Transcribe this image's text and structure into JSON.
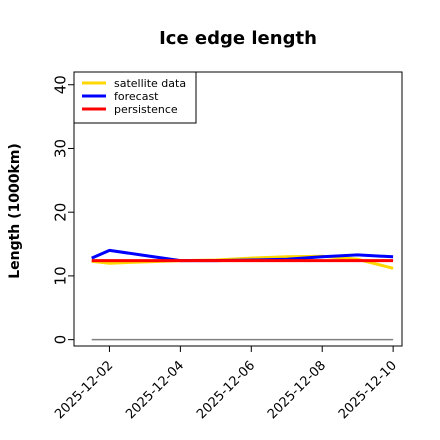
{
  "chart_data": {
    "type": "line",
    "title": "Ice edge length",
    "ylabel": "Length (1000km)",
    "xlabel": "",
    "ylim": [
      -1,
      42
    ],
    "yticks": [
      0,
      10,
      20,
      30,
      40
    ],
    "xlim": [
      "2025-12-01T00:00",
      "2025-12-10T06:00"
    ],
    "xticks": [
      "2025-12-02",
      "2025-12-04",
      "2025-12-06",
      "2025-12-08",
      "2025-12-10"
    ],
    "xtick_colors": [
      "#228b22",
      "#000000",
      "#000000",
      "#000000",
      "#000000"
    ],
    "legend_position": "upper-left",
    "grid": false,
    "x": [
      "2025-12-01T12:00",
      "2025-12-02T00:00",
      "2025-12-03T00:00",
      "2025-12-04T00:00",
      "2025-12-05T00:00",
      "2025-12-06T00:00",
      "2025-12-07T00:00",
      "2025-12-08T00:00",
      "2025-12-09T00:00",
      "2025-12-10T00:00"
    ],
    "series": [
      {
        "name": "satellite data",
        "color": "#ffd700",
        "values": [
          12.3,
          12.0,
          12.2,
          12.4,
          12.5,
          12.8,
          13.0,
          13.1,
          12.6,
          11.2
        ]
      },
      {
        "name": "forecast",
        "color": "#0000ff",
        "values": [
          12.8,
          14.0,
          13.2,
          12.4,
          12.4,
          12.5,
          12.6,
          13.0,
          13.3,
          13.0
        ]
      },
      {
        "name": "persistence",
        "color": "#ff0000",
        "values": [
          12.4,
          12.4,
          12.4,
          12.4,
          12.4,
          12.4,
          12.4,
          12.4,
          12.4,
          12.4
        ]
      }
    ],
    "reference_line": {
      "value": 0,
      "color": "#808080",
      "from": "2025-12-01T12:00",
      "to": "2025-12-10T00:00"
    }
  }
}
